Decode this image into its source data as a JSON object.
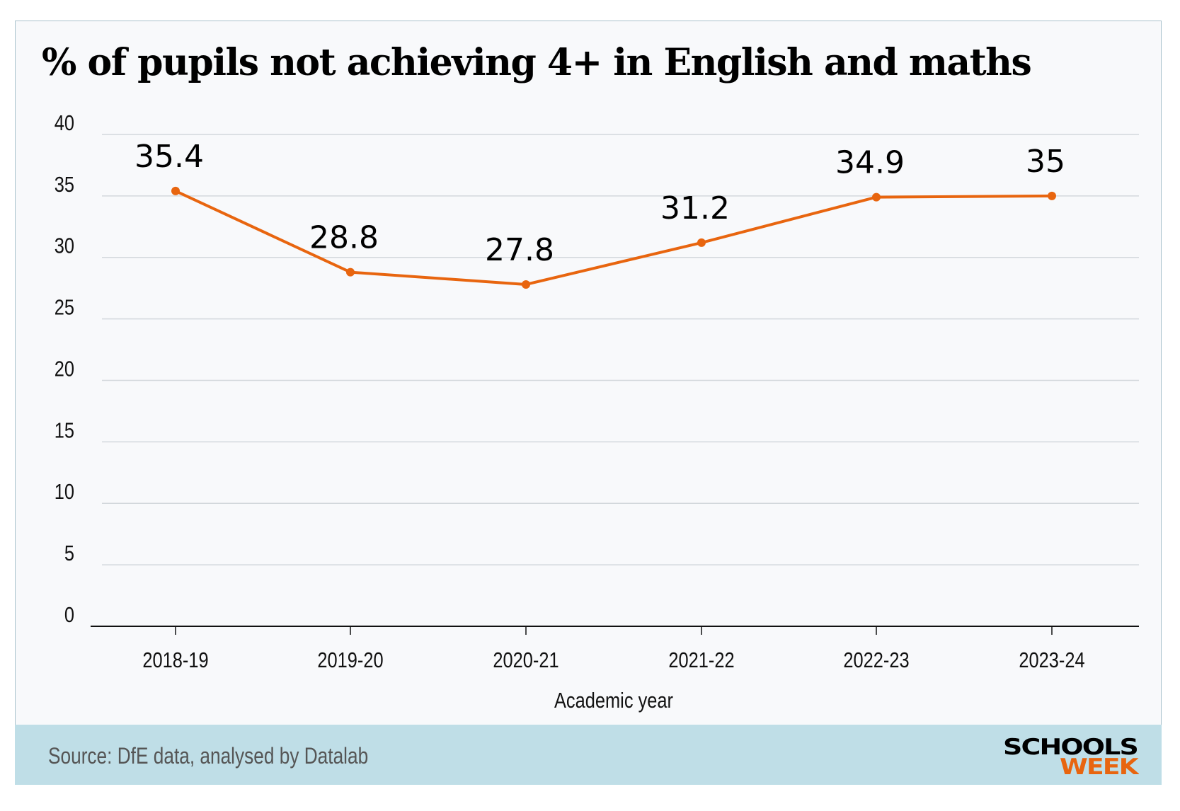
{
  "chart_data": {
    "type": "line",
    "title": "% of pupils not achieving 4+ in English and maths",
    "xlabel": "Academic year",
    "ylabel": "",
    "categories": [
      "2018-19",
      "2019-20",
      "2020-21",
      "2021-22",
      "2022-23",
      "2023-24"
    ],
    "values": [
      35.4,
      28.8,
      27.8,
      31.2,
      34.9,
      35
    ],
    "data_labels": [
      "35.4",
      "28.8",
      "27.8",
      "31.2",
      "34.9",
      "35"
    ],
    "ylim": [
      0,
      40
    ],
    "yticks": [
      "0",
      "5",
      "10",
      "15",
      "20",
      "25",
      "30",
      "35",
      "40"
    ],
    "grid": true,
    "line_color": "#e8650f"
  },
  "footer": {
    "source": "Source: DfE data, analysed by Datalab",
    "logo_top": "SCHOOLS",
    "logo_bottom": "WEEK",
    "logo_colors": {
      "top": "#000000",
      "bottom": "#e8650f"
    },
    "background": "#bfdee7"
  }
}
